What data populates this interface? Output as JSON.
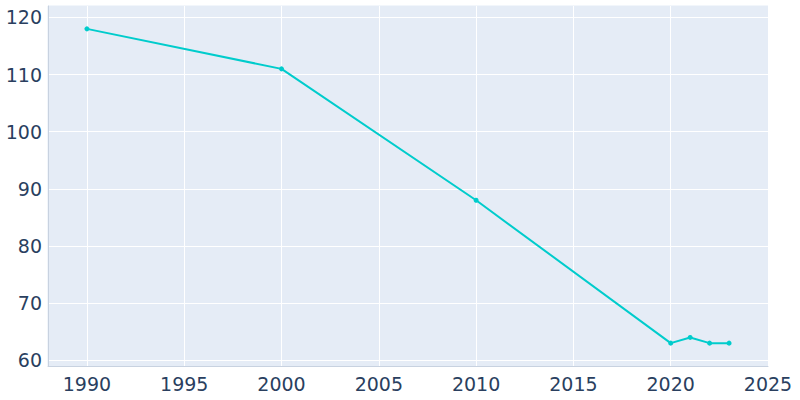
{
  "chart_data": {
    "type": "line",
    "x": [
      1990,
      2000,
      2010,
      2020,
      2021,
      2022,
      2023
    ],
    "values": [
      118,
      111,
      88,
      63,
      64,
      63,
      63
    ],
    "color": "#00cccc",
    "marker": "circle",
    "xlim": [
      1988,
      2025
    ],
    "xticks": [
      1990,
      1995,
      2000,
      2005,
      2010,
      2015,
      2020,
      2025
    ],
    "ylim": [
      59,
      122
    ],
    "yticks": [
      60,
      70,
      80,
      90,
      100,
      110,
      120
    ],
    "grid": true
  }
}
